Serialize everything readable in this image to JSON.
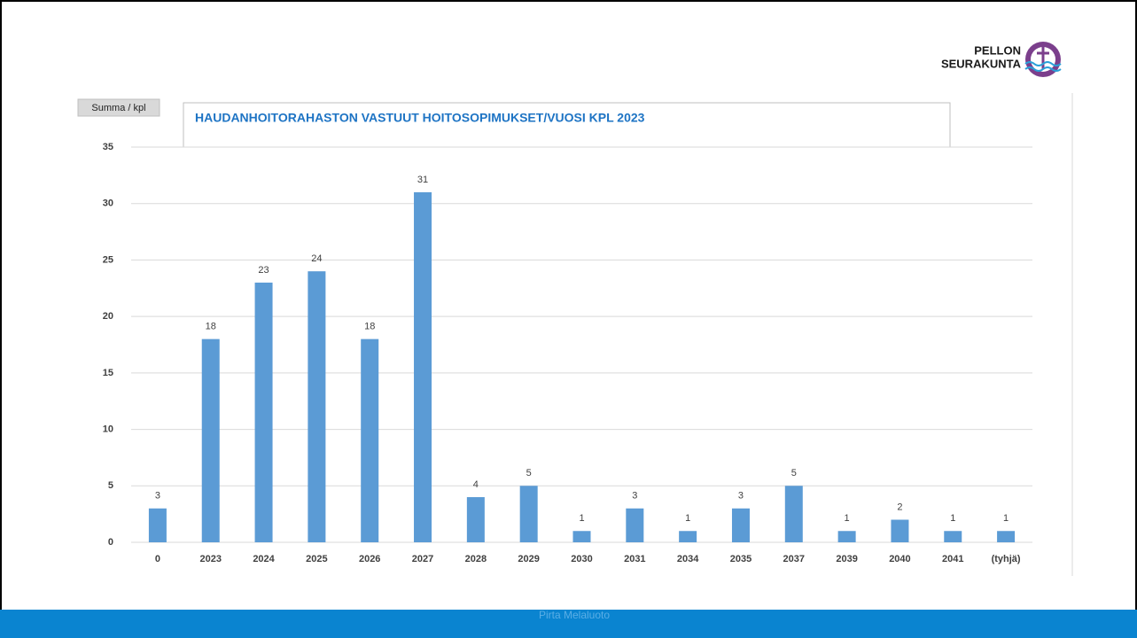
{
  "chart_data": {
    "type": "bar",
    "title": "HAUDANHOITORAHASTON VASTUUT HOITOSOPIMUKSET/VUOSI KPL  2023",
    "field_button": "Summa  / kpl",
    "categories": [
      "0",
      "2023",
      "2024",
      "2025",
      "2026",
      "2027",
      "2028",
      "2029",
      "2030",
      "2031",
      "2034",
      "2035",
      "2037",
      "2039",
      "2040",
      "2041",
      "(tyhjä)"
    ],
    "values": [
      3,
      18,
      23,
      24,
      18,
      31,
      4,
      5,
      1,
      3,
      1,
      3,
      5,
      1,
      2,
      1,
      1
    ],
    "color": "#5b9bd5",
    "ylim": [
      0,
      35
    ],
    "yticks": [
      0,
      5,
      10,
      15,
      20,
      25,
      30,
      35
    ],
    "grid": true
  },
  "logo": {
    "line1": "PELLON",
    "line2": "SEURAKUNTA"
  },
  "footer": "Pirta Melaluoto"
}
